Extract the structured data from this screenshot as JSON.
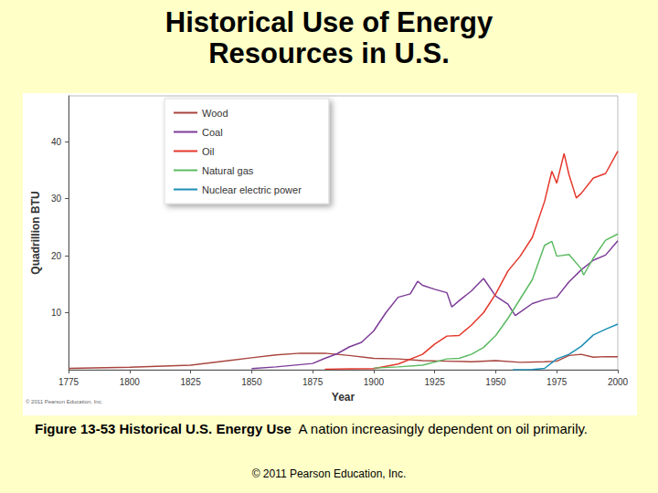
{
  "chart_data": {
    "type": "line",
    "title": "Historical Use of Energy Resources in U.S.",
    "caption_label": "Figure 13-53  Historical U.S. Energy Use",
    "caption_text": "A nation increasingly dependent on oil primarily.",
    "copyright": "© 2011 Pearson Education, Inc.",
    "image_credit": "© 2011 Pearson Education, Inc.",
    "x_label": "Year",
    "y_label": "Quadrillion BTU",
    "xlim": [
      1775,
      2000
    ],
    "xticks": [
      1775,
      1800,
      1825,
      1850,
      1875,
      1900,
      1925,
      1950,
      1975,
      2000
    ],
    "ylim": [
      0,
      48
    ],
    "yticks": [
      10,
      20,
      30,
      40
    ],
    "grid": false,
    "legend": "upper left",
    "series": [
      {
        "name": "Wood",
        "color": "#a8443e",
        "x": [
          1775,
          1800,
          1825,
          1850,
          1860,
          1870,
          1880,
          1890,
          1900,
          1910,
          1920,
          1930,
          1940,
          1950,
          1960,
          1970,
          1975,
          1980,
          1985,
          1990,
          1995,
          2000
        ],
        "values": [
          0.25,
          0.45,
          0.8,
          2.1,
          2.6,
          2.9,
          2.9,
          2.5,
          2.0,
          1.9,
          1.6,
          1.5,
          1.4,
          1.6,
          1.3,
          1.4,
          1.5,
          2.5,
          2.7,
          2.2,
          2.3,
          2.3
        ]
      },
      {
        "name": "Coal",
        "color": "#7d3c98",
        "x": [
          1850,
          1860,
          1870,
          1875,
          1880,
          1885,
          1890,
          1895,
          1900,
          1905,
          1910,
          1915,
          1918,
          1920,
          1925,
          1930,
          1932,
          1935,
          1940,
          1945,
          1950,
          1955,
          1958,
          1960,
          1965,
          1970,
          1975,
          1980,
          1985,
          1990,
          1995,
          2000
        ],
        "values": [
          0.2,
          0.5,
          0.9,
          1.1,
          2.0,
          2.8,
          4.0,
          4.8,
          6.8,
          10.0,
          12.7,
          13.3,
          15.5,
          14.8,
          14.1,
          13.5,
          11.0,
          12.1,
          13.8,
          16.0,
          12.9,
          11.5,
          9.5,
          10.1,
          11.6,
          12.3,
          12.7,
          15.4,
          17.5,
          19.2,
          20.1,
          22.6
        ]
      },
      {
        "name": "Oil",
        "color": "#e5372b",
        "x": [
          1880,
          1890,
          1900,
          1910,
          1920,
          1925,
          1930,
          1935,
          1940,
          1945,
          1950,
          1955,
          1960,
          1965,
          1970,
          1973,
          1975,
          1978,
          1980,
          1983,
          1985,
          1990,
          1995,
          2000
        ],
        "values": [
          0.1,
          0.15,
          0.2,
          1.0,
          2.7,
          4.5,
          5.9,
          6.0,
          7.8,
          10.0,
          13.3,
          17.3,
          19.9,
          23.2,
          29.5,
          34.8,
          32.7,
          37.9,
          34.2,
          30.1,
          30.9,
          33.6,
          34.4,
          38.3
        ]
      },
      {
        "name": "Natural gas",
        "color": "#5cba62",
        "x": [
          1900,
          1910,
          1920,
          1930,
          1935,
          1940,
          1945,
          1950,
          1955,
          1960,
          1965,
          1970,
          1973,
          1975,
          1980,
          1985,
          1986,
          1990,
          1995,
          2000
        ],
        "values": [
          0.3,
          0.5,
          0.8,
          1.9,
          2.0,
          2.7,
          3.9,
          6.0,
          9.0,
          12.4,
          15.8,
          21.8,
          22.5,
          19.9,
          20.2,
          17.7,
          16.6,
          19.6,
          22.7,
          23.8
        ]
      },
      {
        "name": "Nuclear electric power",
        "color": "#1b8fb5",
        "x": [
          1957,
          1965,
          1970,
          1975,
          1980,
          1985,
          1990,
          1995,
          2000
        ],
        "values": [
          0,
          0.04,
          0.24,
          1.9,
          2.7,
          4.1,
          6.1,
          7.1,
          8.0
        ]
      }
    ]
  }
}
